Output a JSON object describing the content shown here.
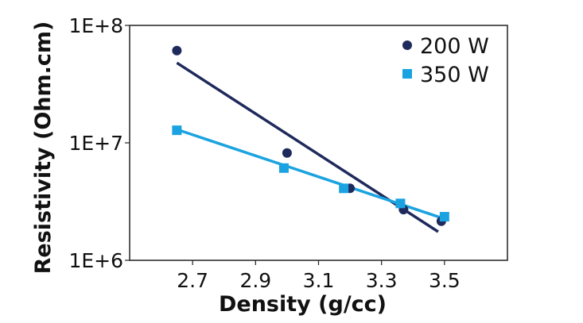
{
  "chart_data": {
    "type": "scatter",
    "title": "",
    "xlabel": "Density (g/cc)",
    "ylabel": "Resistivity (Ohm.cm)",
    "xlim": [
      2.5,
      3.7
    ],
    "ylim": [
      1000000,
      100000000
    ],
    "yscale": "log",
    "x_ticks": [
      {
        "value": 2.7,
        "label": "2.7"
      },
      {
        "value": 2.9,
        "label": "2.9"
      },
      {
        "value": 3.1,
        "label": "3.1"
      },
      {
        "value": 3.3,
        "label": "3.3"
      },
      {
        "value": 3.5,
        "label": "3.5"
      }
    ],
    "y_ticks": [
      {
        "value": 1000000,
        "label": "1E+6"
      },
      {
        "value": 10000000,
        "label": "1E+7"
      },
      {
        "value": 100000000,
        "label": "1E+8"
      }
    ],
    "grid": false,
    "legend_position": "top-right",
    "series": [
      {
        "name": "200 W",
        "marker": "circle",
        "color": "#1f2a5c",
        "x": [
          2.65,
          3.0,
          3.2,
          3.37,
          3.49
        ],
        "y": [
          61000000,
          8200000,
          4100000,
          2700000,
          2150000
        ],
        "trendline": {
          "x": [
            2.65,
            3.48
          ],
          "y": [
            48000000,
            1750000
          ]
        }
      },
      {
        "name": "350 W",
        "marker": "square",
        "color": "#1aa3e0",
        "x": [
          2.65,
          2.99,
          3.18,
          3.36,
          3.5
        ],
        "y": [
          12800000,
          6100000,
          4100000,
          3050000,
          2350000
        ],
        "trendline": {
          "x": [
            2.65,
            3.49
          ],
          "y": [
            13000000,
            2300000
          ]
        }
      }
    ]
  }
}
